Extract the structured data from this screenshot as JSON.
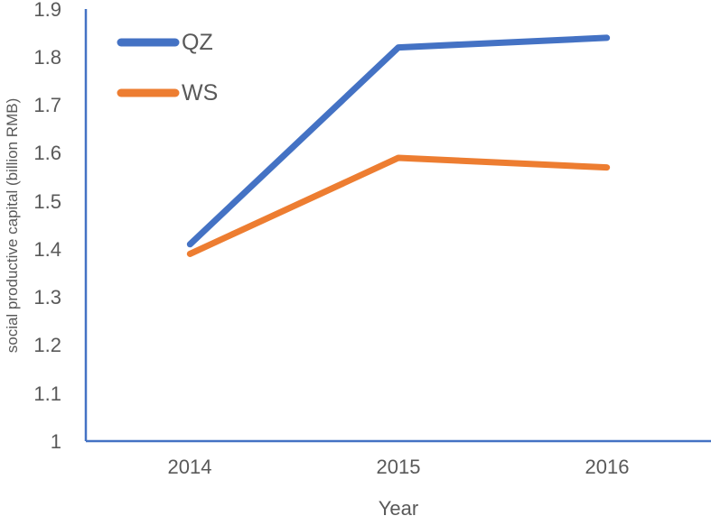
{
  "chart_data": {
    "type": "line",
    "title": "",
    "xlabel": "Year",
    "ylabel": "social productive capital (billion RMB)",
    "categories": [
      "2014",
      "2015",
      "2016"
    ],
    "series": [
      {
        "name": "QZ",
        "color": "#4472C4",
        "values": [
          1.41,
          1.82,
          1.84
        ]
      },
      {
        "name": "WS",
        "color": "#ED7D31",
        "values": [
          1.39,
          1.59,
          1.57
        ]
      }
    ],
    "ylim": [
      1,
      1.9
    ],
    "ytick_labels": [
      "1.9",
      "1.8",
      "1.7",
      "1.6",
      "1.5",
      "1.4",
      "1.3",
      "1.2",
      "1.1",
      "1"
    ],
    "ytick_step": 0.1,
    "grid": false,
    "legend_position": "inside-top-left",
    "axis_color": "#4472C4",
    "text_color": "#595959",
    "line_width": 7
  }
}
